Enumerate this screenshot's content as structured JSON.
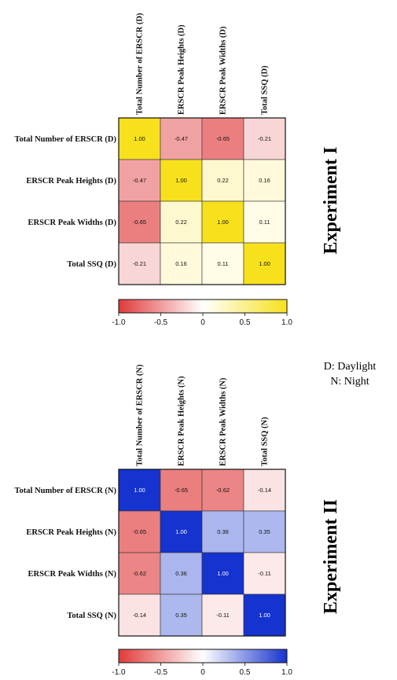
{
  "legend_note": {
    "line1": "D: Daylight",
    "line2": "N: Night"
  },
  "palettes": {
    "warm": {
      "low": "#e03a3a",
      "mid": "#ffffff",
      "high": "#f7e11c"
    },
    "cool": {
      "low": "#e03a3a",
      "mid": "#ffffff",
      "high": "#1533cf"
    }
  },
  "chart_data": [
    {
      "type": "heatmap",
      "title": "Experiment I",
      "colorscale": "warm",
      "rows": [
        "Total Number of ERSCR (D)",
        "ERSCR Peak Heights (D)",
        "ERSCR Peak Widths (D)",
        "Total SSQ (D)"
      ],
      "columns": [
        "Total Number of ERSCR (D)",
        "ERSCR Peak Heights (D)",
        "ERSCR Peak Widths (D)",
        "Total SSQ (D)"
      ],
      "values": [
        [
          1.0,
          -0.47,
          -0.65,
          -0.21
        ],
        [
          -0.47,
          1.0,
          0.22,
          0.16
        ],
        [
          -0.65,
          0.22,
          1.0,
          0.11
        ],
        [
          -0.21,
          0.16,
          0.11,
          1.0
        ]
      ],
      "labels": [
        [
          "1.00",
          "-0.47",
          "-0.65",
          "-0.21"
        ],
        [
          "-0.47",
          "1.00",
          "0.22",
          "0.16"
        ],
        [
          "-0.65",
          "0.22",
          "1.00",
          "0.11"
        ],
        [
          "-0.21",
          "0.16",
          "0.11",
          "1.00"
        ]
      ],
      "colorbar": {
        "range": [
          -1.0,
          1.0
        ],
        "ticks": [
          "-1.0",
          "-0.5",
          "0",
          "0.5",
          "1.0"
        ]
      }
    },
    {
      "type": "heatmap",
      "title": "Experiment II",
      "colorscale": "cool",
      "rows": [
        "Total Number of ERSCR (N)",
        "ERSCR Peak Heights (N)",
        "ERSCR Peak Widths (N)",
        "Total SSQ (N)"
      ],
      "columns": [
        "Total Number of ERSCR (N)",
        "ERSCR Peak Heights (N)",
        "ERSCR Peak Widths (N)",
        "Total SSQ (N)"
      ],
      "values": [
        [
          1.0,
          -0.65,
          -0.62,
          -0.14
        ],
        [
          -0.65,
          1.0,
          0.36,
          0.35
        ],
        [
          -0.62,
          0.36,
          1.0,
          -0.11
        ],
        [
          -0.14,
          0.35,
          -0.11,
          1.0
        ]
      ],
      "labels": [
        [
          "1.00",
          "-0.65",
          "-0.62",
          "-0.14"
        ],
        [
          "-0.65",
          "1.00",
          "0.36",
          "0.35"
        ],
        [
          "-0.62",
          "0.36",
          "1.00",
          "-0.11"
        ],
        [
          "-0.14",
          "0.35",
          "-0.11",
          "1.00"
        ]
      ],
      "colorbar": {
        "range": [
          -1.0,
          1.0
        ],
        "ticks": [
          "-1.0",
          "-0.5",
          "0",
          "0.5",
          "1.0"
        ]
      }
    }
  ]
}
